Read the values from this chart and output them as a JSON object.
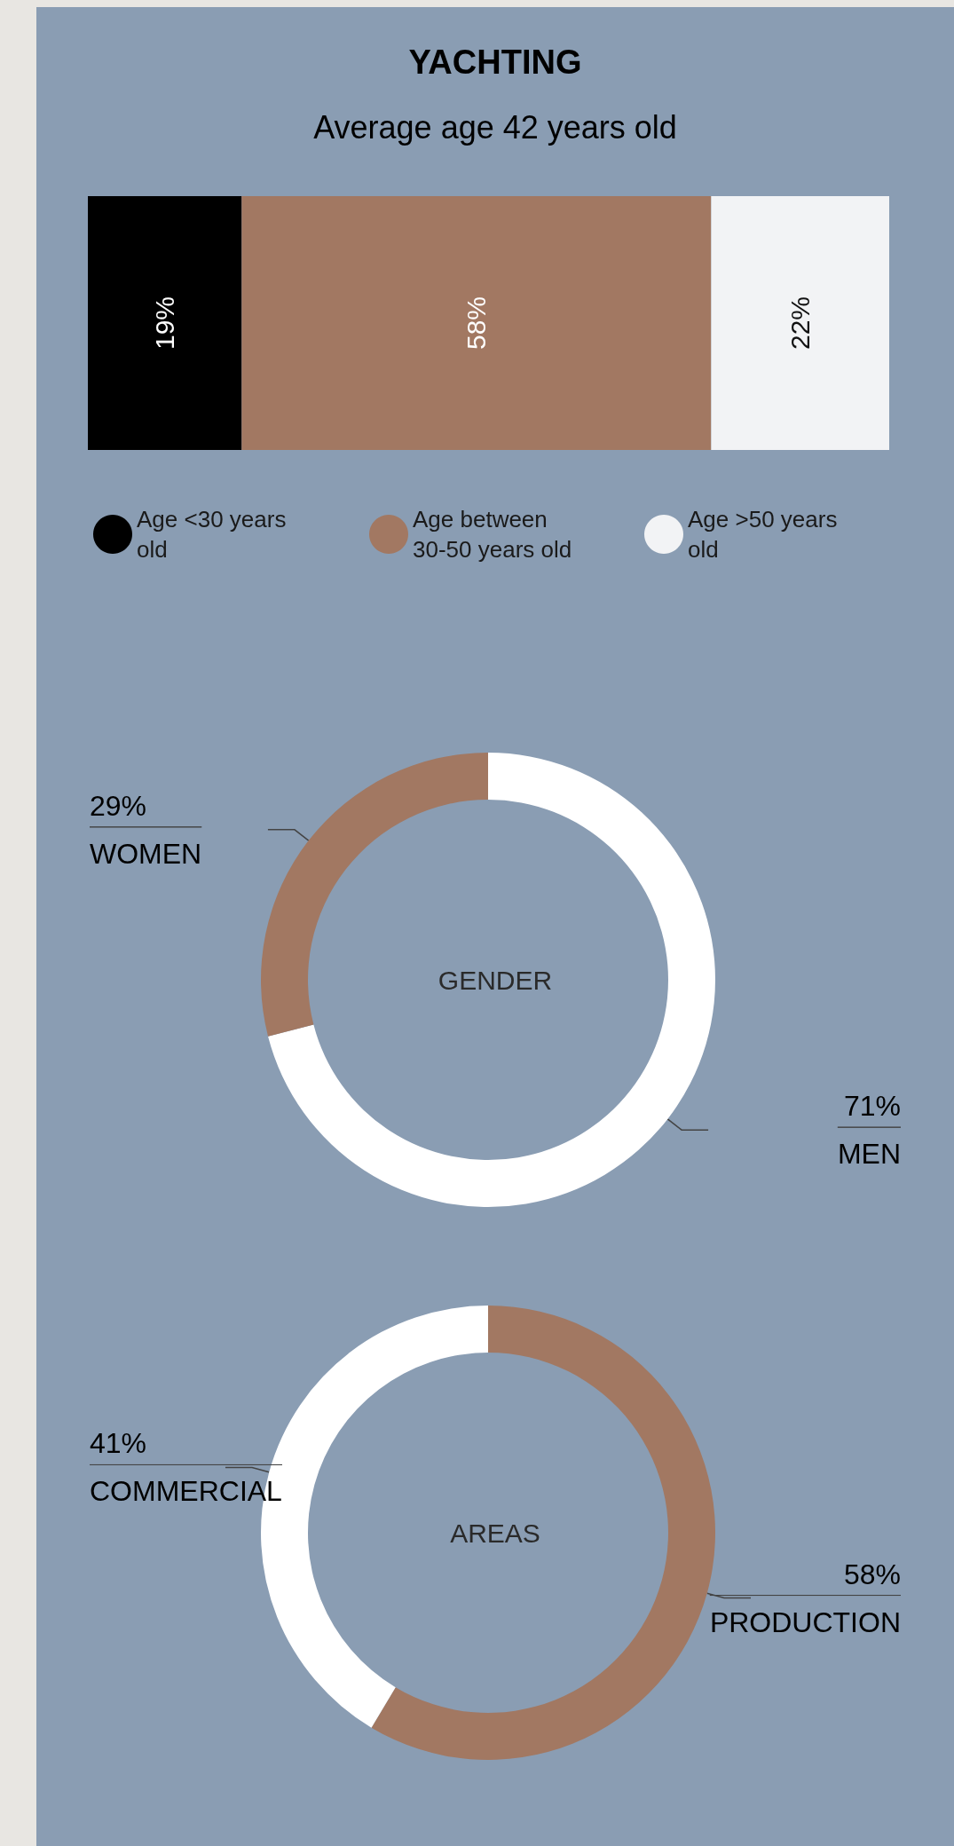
{
  "chart_data": [
    {
      "type": "bar",
      "title": "YACHTING",
      "subtitle": "Average age 42 years old",
      "orientation": "horizontal",
      "stacked": true,
      "categories": [
        null
      ],
      "xlim": [
        0,
        99
      ],
      "tick_labels": false,
      "legend": "bottom",
      "series": [
        {
          "name": "Age <30 years old",
          "color": "#000000",
          "values": [
            19
          ],
          "value_labels": [
            "19%"
          ]
        },
        {
          "name": "Age between 30-50 years old",
          "color": "#a27862",
          "values": [
            58
          ],
          "value_labels": [
            "58%"
          ]
        },
        {
          "name": "Age >50 years old",
          "color": "#f2f3f5",
          "values": [
            22
          ],
          "value_labels": [
            "22%"
          ]
        }
      ]
    },
    {
      "type": "donut",
      "title": "GENDER",
      "categories": [
        "MEN",
        "WOMEN"
      ],
      "values": [
        71,
        29
      ],
      "colors": [
        "#ffffff",
        "#a27862"
      ],
      "value_labels": [
        "71%",
        "29%"
      ]
    },
    {
      "type": "donut",
      "title": "AREAS",
      "categories": [
        "PRODUCTION",
        "COMMERCIAL"
      ],
      "values": [
        58,
        41
      ],
      "colors": [
        "#a27862",
        "#ffffff"
      ],
      "value_labels": [
        "58%",
        "41%"
      ]
    }
  ]
}
